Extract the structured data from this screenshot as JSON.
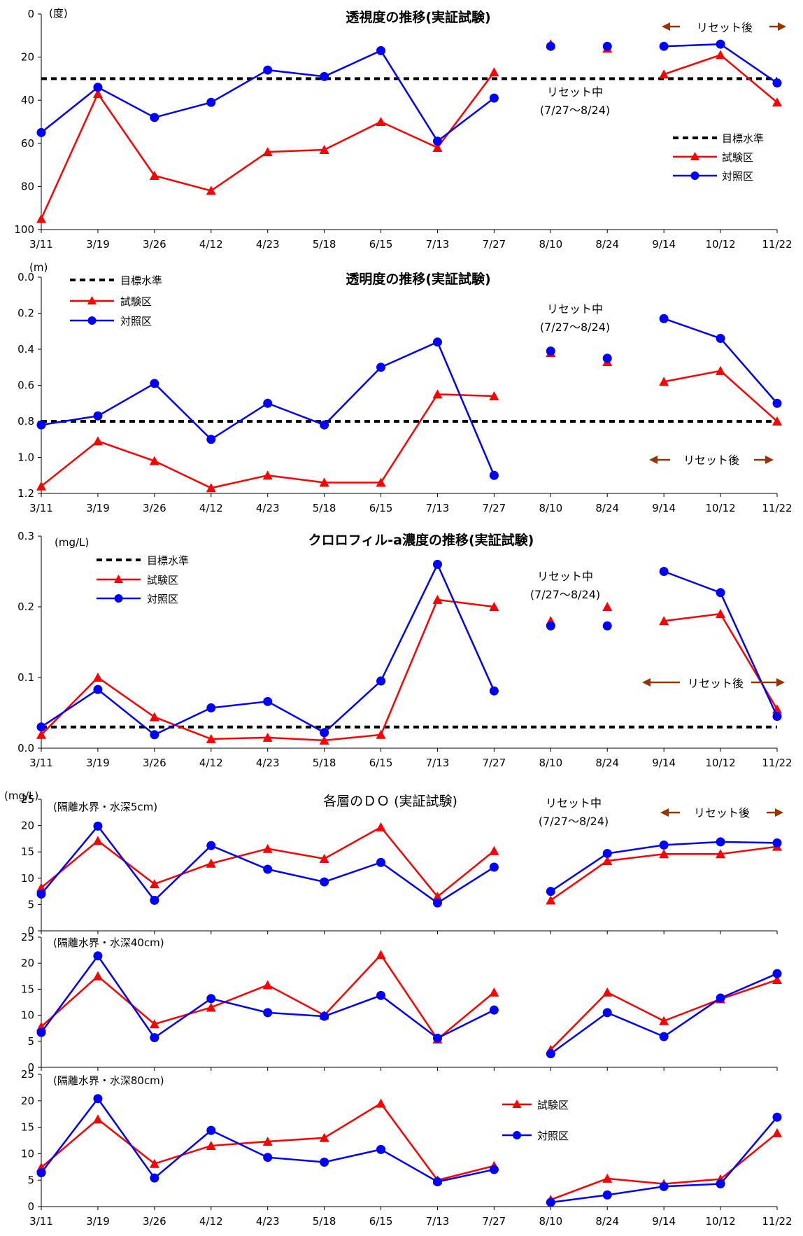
{
  "dates": [
    "3/11",
    "3/19",
    "3/26",
    "4/12",
    "4/23",
    "5/18",
    "6/15",
    "7/13",
    "7/27",
    "8/10",
    "8/24",
    "9/14",
    "10/12",
    "11/22"
  ],
  "colors": {
    "experiment": "#ff0000",
    "control": "#0000ff",
    "target": "#000000",
    "reset_arrow": "#993300"
  },
  "legend_labels": {
    "target": "目標水準",
    "experiment": "試験区",
    "control": "対照区"
  },
  "reset_labels": {
    "during": "リセット中",
    "period": "(7/27～8/24)",
    "after": "リセット後"
  },
  "chart_data": [
    {
      "type": "line",
      "title": "透視度の推移(実証試験)",
      "unit": "(度)",
      "ylim": [
        100,
        0
      ],
      "yticks": [
        "0",
        "20",
        "40",
        "60",
        "80",
        "100"
      ],
      "reversed": true,
      "target": 30,
      "series": [
        {
          "name": "試験区",
          "values": [
            95,
            37,
            75,
            82,
            64,
            63,
            50,
            62,
            27,
            14,
            16,
            28,
            19,
            41
          ]
        },
        {
          "name": "対照区",
          "values": [
            55,
            34,
            48,
            41,
            26,
            29,
            17,
            59,
            39,
            15,
            15,
            15,
            14,
            32
          ]
        }
      ],
      "legend": "right"
    },
    {
      "type": "line",
      "title": "透明度の推移(実証試験)",
      "unit": "(m)",
      "ylim": [
        1.2,
        0.0
      ],
      "yticks": [
        "0.0",
        "0.2",
        "0.4",
        "0.6",
        "0.8",
        "1.0",
        "1.2"
      ],
      "reversed": true,
      "target": 0.8,
      "series": [
        {
          "name": "試験区",
          "values": [
            1.16,
            0.91,
            1.02,
            1.17,
            1.1,
            1.14,
            1.14,
            0.65,
            0.66,
            0.42,
            0.47,
            0.58,
            0.52,
            0.8
          ]
        },
        {
          "name": "対照区",
          "values": [
            0.82,
            0.77,
            0.59,
            0.9,
            0.7,
            0.82,
            0.5,
            0.36,
            1.1,
            0.41,
            0.45,
            0.23,
            0.34,
            0.7
          ]
        }
      ],
      "legend": "top-left"
    },
    {
      "type": "line",
      "title": "クロロフィル-a濃度の推移(実証試験)",
      "unit": "(mg/L)",
      "ylim": [
        0,
        0.3
      ],
      "yticks": [
        "0.0",
        "0.1",
        "0.2",
        "0.3"
      ],
      "reversed": false,
      "target": 0.03,
      "series": [
        {
          "name": "試験区",
          "values": [
            0.019,
            0.1,
            0.044,
            0.013,
            0.015,
            0.011,
            0.019,
            0.21,
            0.2,
            0.18,
            0.2,
            0.18,
            0.19,
            0.055
          ]
        },
        {
          "name": "対照区",
          "values": [
            0.03,
            0.083,
            0.019,
            0.057,
            0.066,
            0.022,
            0.095,
            0.26,
            0.081,
            0.173,
            0.173,
            0.25,
            0.22,
            0.045
          ]
        }
      ],
      "legend": "top-left"
    },
    {
      "type": "line",
      "title": "各層のＤＯ (実証試験)",
      "unit": "(mg/L)",
      "subtitle": "(隔離水界・水深5cm)",
      "ylim": [
        0,
        25
      ],
      "yticks": [
        "0",
        "5",
        "10",
        "15",
        "20",
        "25"
      ],
      "series": [
        {
          "name": "試験区",
          "values": [
            8.2,
            17.1,
            8.9,
            12.8,
            15.6,
            13.7,
            19.7,
            6.5,
            15.2,
            5.8,
            13.3,
            14.6,
            14.6,
            16.0
          ]
        },
        {
          "name": "対照区",
          "values": [
            7.0,
            19.9,
            5.8,
            16.2,
            11.7,
            9.3,
            13.0,
            5.3,
            12.1,
            7.5,
            14.7,
            16.3,
            16.9,
            16.7
          ]
        }
      ]
    },
    {
      "type": "line",
      "subtitle": "(隔離水界・水深40cm)",
      "ylim": [
        0,
        25
      ],
      "yticks": [
        "0",
        "5",
        "10",
        "15",
        "20",
        "25"
      ],
      "series": [
        {
          "name": "試験区",
          "values": [
            7.8,
            17.5,
            8.3,
            11.5,
            15.8,
            10.0,
            21.6,
            5.4,
            14.4,
            3.4,
            14.4,
            8.9,
            13.1,
            16.8
          ]
        },
        {
          "name": "対照区",
          "values": [
            6.7,
            21.4,
            5.7,
            13.2,
            10.5,
            9.8,
            13.8,
            5.6,
            11.0,
            2.6,
            10.5,
            5.9,
            13.3,
            18.0
          ]
        }
      ]
    },
    {
      "type": "line",
      "subtitle": "(隔離水界・水深80cm)",
      "ylim": [
        0,
        25
      ],
      "yticks": [
        "0",
        "5",
        "10",
        "15",
        "20",
        "25"
      ],
      "series": [
        {
          "name": "試験区",
          "values": [
            7.4,
            16.5,
            8.1,
            11.5,
            12.3,
            13.0,
            19.5,
            5.0,
            7.7,
            1.3,
            5.3,
            4.3,
            5.2,
            13.9
          ]
        },
        {
          "name": "対照区",
          "values": [
            6.4,
            20.4,
            5.4,
            14.4,
            9.3,
            8.4,
            10.8,
            4.7,
            7.0,
            0.8,
            2.2,
            3.8,
            4.3,
            16.9
          ]
        }
      ],
      "legend": "right"
    }
  ]
}
